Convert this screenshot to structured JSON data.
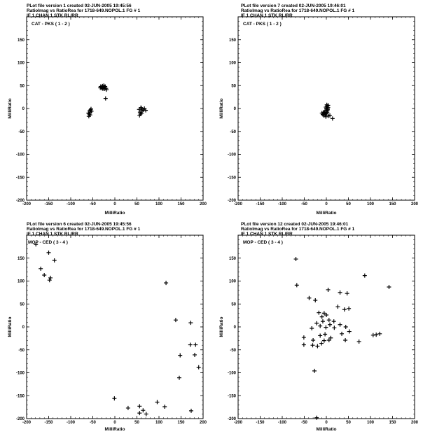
{
  "plots": [
    {
      "header": [
        "PLot file version 1  created 02-JUN-2005 19:45:56",
        "RatioImag vs RatioRea  for  1718-649.NOPOL.1  FG # 1",
        "IF 1   CHAN 1   STK RL/RR"
      ],
      "label": "CAT - PKS ( 1 - 2 )",
      "xlabel": "MilliRatio",
      "ylabel": "MilliRatio"
    },
    {
      "header": [
        "PLot file version 7  created 02-JUN-2005 19:46:01",
        "RatioImag vs RatioRea  for  1718-649.NOPOL.1  FG # 1",
        "IF 1   CHAN 1   STK RL/RR"
      ],
      "label": "CAT - PKS ( 1 - 2 )",
      "xlabel": "MilliRatio",
      "ylabel": "MilliRatio"
    },
    {
      "header": [
        "PLot file version 6  created 02-JUN-2005 19:45:56",
        "RatioImag vs RatioRea  for  1718-649.NOPOL.1  FG # 1",
        "IF 1   CHAN 1   STK RL/RR"
      ],
      "label": "MOP - CED ( 3 - 4 )",
      "xlabel": "MilliRatio",
      "ylabel": "MilliRatio"
    },
    {
      "header": [
        "PLot file version 12  created 02-JUN-2005 19:46:01",
        "RatioImag vs RatioRea  for  1718-649.NOPOL.1  FG # 1",
        "IF 1   CHAN 1   STK RL/RR"
      ],
      "label": "MOP - CED ( 3 - 4 )",
      "xlabel": "MilliRatio",
      "ylabel": "MilliRatio"
    }
  ],
  "chart_data": [
    {
      "type": "scatter",
      "marker": "+",
      "xlim": [
        -200,
        200
      ],
      "ylim": [
        -200,
        200
      ],
      "xticks": [
        -200,
        -150,
        -100,
        -50,
        0,
        50,
        100,
        150,
        200
      ],
      "yticks": [
        -200,
        -150,
        -100,
        -50,
        0,
        50,
        100,
        150
      ],
      "points": [
        [
          -32,
          48
        ],
        [
          -30,
          46
        ],
        [
          -28,
          49
        ],
        [
          -26,
          45
        ],
        [
          -24,
          47
        ],
        [
          -22,
          48
        ],
        [
          -29,
          44
        ],
        [
          -25,
          50
        ],
        [
          -20,
          44
        ],
        [
          -27,
          43
        ],
        [
          -23,
          43
        ],
        [
          -33,
          45
        ],
        [
          -19,
          41
        ],
        [
          -21,
          22
        ],
        [
          -57,
          -5
        ],
        [
          -56,
          -8
        ],
        [
          -55,
          -3
        ],
        [
          -58,
          -12
        ],
        [
          -54,
          -1
        ],
        [
          -53,
          -6
        ],
        [
          -59,
          -17
        ],
        [
          -60,
          -10
        ],
        [
          -56,
          -14
        ],
        [
          55,
          -2
        ],
        [
          57,
          -8
        ],
        [
          60,
          1
        ],
        [
          58,
          -12
        ],
        [
          62,
          -5
        ],
        [
          65,
          -3
        ],
        [
          67,
          0
        ],
        [
          56,
          -15
        ],
        [
          61,
          -10
        ],
        [
          59,
          2
        ],
        [
          70,
          -4
        ]
      ]
    },
    {
      "type": "scatter",
      "marker": "+",
      "xlim": [
        -200,
        200
      ],
      "ylim": [
        -200,
        200
      ],
      "xticks": [
        -200,
        -150,
        -100,
        -50,
        0,
        50,
        100,
        150,
        200
      ],
      "yticks": [
        -200,
        -150,
        -100,
        -50,
        0,
        50,
        100,
        150
      ],
      "points": [
        [
          -10,
          -10
        ],
        [
          -8,
          -13
        ],
        [
          -5,
          -11
        ],
        [
          -3,
          -14
        ],
        [
          0,
          -10
        ],
        [
          2,
          -8
        ],
        [
          -6,
          -15
        ],
        [
          -2,
          -12
        ],
        [
          1,
          -5
        ],
        [
          3,
          -3
        ],
        [
          0,
          0
        ],
        [
          -1,
          3
        ],
        [
          2,
          5
        ],
        [
          4,
          2
        ],
        [
          1,
          8
        ],
        [
          3,
          -1
        ],
        [
          -4,
          -8
        ],
        [
          -7,
          -9
        ],
        [
          5,
          -16
        ],
        [
          8,
          -15
        ],
        [
          -1,
          -18
        ],
        [
          14,
          -22
        ],
        [
          4,
          7
        ],
        [
          -3,
          -5
        ]
      ]
    },
    {
      "type": "scatter",
      "marker": "+",
      "xlim": [
        -200,
        200
      ],
      "ylim": [
        -200,
        200
      ],
      "xticks": [
        -200,
        -150,
        -100,
        -50,
        0,
        50,
        100,
        150,
        200
      ],
      "yticks": [
        -200,
        -150,
        -100,
        -50,
        0,
        50,
        100,
        150
      ],
      "points": [
        [
          -179,
          180
        ],
        [
          -168,
          127
        ],
        [
          -150,
          162
        ],
        [
          -160,
          113
        ],
        [
          -146,
          107
        ],
        [
          -148,
          102
        ],
        [
          -137,
          145
        ],
        [
          116,
          96
        ],
        [
          138,
          15
        ],
        [
          172,
          9
        ],
        [
          171,
          -39
        ],
        [
          183,
          -39
        ],
        [
          148,
          -62
        ],
        [
          181,
          -61
        ],
        [
          190,
          -88
        ],
        [
          146,
          -111
        ],
        [
          -1,
          -156
        ],
        [
          30,
          -177
        ],
        [
          56,
          -173
        ],
        [
          64,
          -182
        ],
        [
          56,
          -188
        ],
        [
          71,
          -190
        ],
        [
          96,
          -164
        ],
        [
          113,
          -174
        ],
        [
          173,
          -183
        ]
      ]
    },
    {
      "type": "scatter",
      "marker": "+",
      "xlim": [
        -200,
        200
      ],
      "ylim": [
        -200,
        200
      ],
      "xticks": [
        -200,
        -150,
        -100,
        -50,
        0,
        50,
        100,
        150,
        200
      ],
      "yticks": [
        -200,
        -150,
        -100,
        -50,
        0,
        50,
        100,
        150
      ],
      "points": [
        [
          -69,
          148
        ],
        [
          -67,
          91
        ],
        [
          87,
          112
        ],
        [
          142,
          87
        ],
        [
          -39,
          63
        ],
        [
          -25,
          58
        ],
        [
          4,
          81
        ],
        [
          31,
          75
        ],
        [
          47,
          73
        ],
        [
          26,
          44
        ],
        [
          41,
          38
        ],
        [
          51,
          40
        ],
        [
          -10,
          22
        ],
        [
          -5,
          30
        ],
        [
          -17,
          31
        ],
        [
          0,
          26
        ],
        [
          -8,
          12
        ],
        [
          -22,
          8
        ],
        [
          -14,
          2
        ],
        [
          6,
          15
        ],
        [
          17,
          12
        ],
        [
          8,
          5
        ],
        [
          -1,
          -1
        ],
        [
          31,
          5
        ],
        [
          44,
          0
        ],
        [
          52,
          -10
        ],
        [
          -33,
          -3
        ],
        [
          -14,
          -19
        ],
        [
          -3,
          -16
        ],
        [
          10,
          -24
        ],
        [
          18,
          -2
        ],
        [
          35,
          -15
        ],
        [
          43,
          -29
        ],
        [
          -11,
          -36
        ],
        [
          -30,
          -29
        ],
        [
          -20,
          -42
        ],
        [
          -5,
          -30
        ],
        [
          -51,
          -23
        ],
        [
          -51,
          -39
        ],
        [
          -31,
          -40
        ],
        [
          6,
          -29
        ],
        [
          74,
          -32
        ],
        [
          106,
          -18
        ],
        [
          113,
          -17
        ],
        [
          121,
          -15
        ],
        [
          -27,
          -96
        ],
        [
          -22,
          -198
        ]
      ]
    }
  ]
}
